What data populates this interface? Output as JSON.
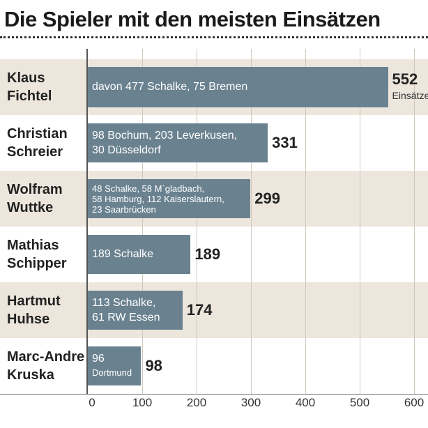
{
  "title": "Die Spieler mit den meisten Einsätzen",
  "chart_data": {
    "type": "bar",
    "orientation": "horizontal",
    "title": "Die Spieler mit den meisten Einsätzen",
    "categories": [
      "Klaus Fichtel",
      "Christian Schreier",
      "Wolfram Wuttke",
      "Mathias Schipper",
      "Hartmut Huhse",
      "Marc-Andre Kruska"
    ],
    "values": [
      552,
      331,
      299,
      189,
      174,
      98
    ],
    "value_unit": "Einsätze",
    "xlim": [
      0,
      600
    ],
    "xticks": [
      "0",
      "100",
      "200",
      "300",
      "400",
      "500",
      "600"
    ],
    "grid": true,
    "rows": [
      {
        "name": [
          "Klaus",
          "Fichtel"
        ],
        "value": 552,
        "value_label": "552",
        "details": [
          "davon 477 Schalke, 75 Bremen"
        ]
      },
      {
        "name": [
          "Christian",
          "Schreier"
        ],
        "value": 331,
        "value_label": "331",
        "details": [
          "98 Bochum, 203 Leverkusen,",
          "30 Düsseldorf"
        ]
      },
      {
        "name": [
          "Wolfram",
          "Wuttke"
        ],
        "value": 299,
        "value_label": "299",
        "details": [
          "48 Schalke, 58 M`gladbach,",
          "58 Hamburg, 112 Kaiserslautern,",
          "23 Saarbrücken"
        ]
      },
      {
        "name": [
          "Mathias",
          "Schipper"
        ],
        "value": 189,
        "value_label": "189",
        "details": [
          "189 Schalke"
        ]
      },
      {
        "name": [
          "Hartmut",
          "Huhse"
        ],
        "value": 174,
        "value_label": "174",
        "details": [
          "113 Schalke,",
          "61 RW Essen"
        ]
      },
      {
        "name": [
          "Marc-Andre",
          "Kruska"
        ],
        "value": 98,
        "value_label": "98",
        "details": [
          "96",
          "Dortmund"
        ]
      }
    ]
  }
}
